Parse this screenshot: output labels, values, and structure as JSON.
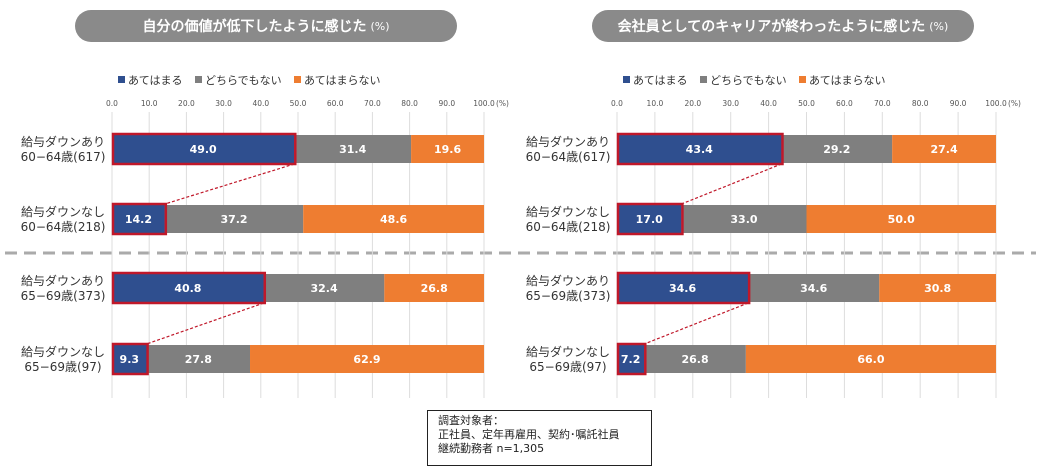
{
  "colors": {
    "yes": "#2f4f8f",
    "neutral": "#7f7f7f",
    "no": "#ee7d31",
    "highlight": "#c0182a",
    "pill": "#8a8a8a",
    "divider": "#aaaaaa"
  },
  "chart_data": [
    {
      "type": "bar",
      "orientation": "horizontal-stacked",
      "title": "自分の価値が低下したように感じた",
      "title_unit": "(%)",
      "legend": [
        "あてはまる",
        "どちらでもない",
        "あてはまらない"
      ],
      "xlim": [
        0,
        100
      ],
      "ticks": [
        "0.0",
        "10.0",
        "20.0",
        "30.0",
        "40.0",
        "50.0",
        "60.0",
        "70.0",
        "80.0",
        "90.0",
        "100.0"
      ],
      "unit_label": "(%)",
      "categories": [
        {
          "line1": "給与ダウンあり",
          "line2": "60−64歳(617)"
        },
        {
          "line1": "給与ダウンなし",
          "line2": "60−64歳(218)"
        },
        {
          "line1": "給与ダウンあり",
          "line2": "65−69歳(373)"
        },
        {
          "line1": "給与ダウンなし",
          "line2": "65−69歳(97)"
        }
      ],
      "series": [
        {
          "name": "あてはまる",
          "values": [
            49.0,
            14.2,
            40.8,
            9.3
          ],
          "labels": [
            "49.0",
            "14.2",
            "40.8",
            "9.3"
          ]
        },
        {
          "name": "どちらでもない",
          "values": [
            31.4,
            37.2,
            32.4,
            27.8
          ],
          "labels": [
            "31.4",
            "37.2",
            "32.4",
            "27.8"
          ]
        },
        {
          "name": "あてはまらない",
          "values": [
            19.6,
            48.6,
            26.8,
            62.9
          ],
          "labels": [
            "19.6",
            "48.6",
            "26.8",
            "62.9"
          ]
        }
      ]
    },
    {
      "type": "bar",
      "orientation": "horizontal-stacked",
      "title": "会社員としてのキャリアが終わったように感じた",
      "title_unit": "(%)",
      "legend": [
        "あてはまる",
        "どちらでもない",
        "あてはまらない"
      ],
      "xlim": [
        0,
        100
      ],
      "ticks": [
        "0.0",
        "10.0",
        "20.0",
        "30.0",
        "40.0",
        "50.0",
        "60.0",
        "70.0",
        "80.0",
        "90.0",
        "100.0"
      ],
      "unit_label": "(%)",
      "categories": [
        {
          "line1": "給与ダウンあり",
          "line2": "60−64歳(617)"
        },
        {
          "line1": "給与ダウンなし",
          "line2": "60−64歳(218)"
        },
        {
          "line1": "給与ダウンあり",
          "line2": "65−69歳(373)"
        },
        {
          "line1": "給与ダウンなし",
          "line2": "65−69歳(97)"
        }
      ],
      "series": [
        {
          "name": "あてはまる",
          "values": [
            43.4,
            17.0,
            34.6,
            7.2
          ],
          "labels": [
            "43.4",
            "17.0",
            "34.6",
            "7.2"
          ]
        },
        {
          "name": "どちらでもない",
          "values": [
            29.2,
            33.0,
            34.6,
            26.8
          ],
          "labels": [
            "29.2",
            "33.0",
            "34.6",
            "26.8"
          ]
        },
        {
          "name": "あてはまらない",
          "values": [
            27.4,
            50.0,
            30.8,
            66.0
          ],
          "labels": [
            "27.4",
            "50.0",
            "30.8",
            "66.0"
          ]
        }
      ]
    }
  ],
  "note": {
    "line1": "調査対象者：",
    "line2": "正社員、定年再雇用、契約･嘱託社員",
    "line3": "継続勤務者 n=1,305"
  }
}
